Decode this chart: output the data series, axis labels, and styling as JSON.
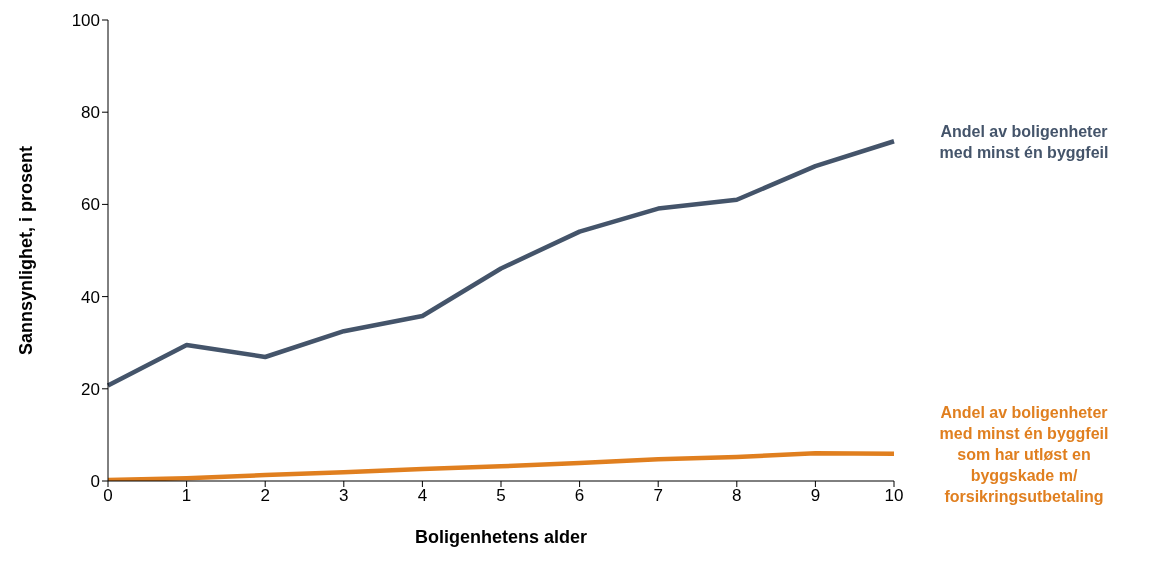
{
  "chart_data": {
    "type": "line",
    "xlabel": "Boligenhetens alder",
    "ylabel": "Sannsynlighet, i prosent",
    "categories": [
      "0",
      "1",
      "2",
      "3",
      "4",
      "5",
      "6",
      "7",
      "8",
      "9",
      "10"
    ],
    "ylim": [
      0,
      100
    ],
    "yticks": [
      0,
      20,
      40,
      60,
      80,
      100
    ],
    "grid": false,
    "legend": false,
    "marker": "none",
    "line_style": "solid",
    "series": [
      {
        "name": "Andel av boligenheter med minst én byggfeil",
        "color": "#44546a",
        "values": [
          20.7,
          29.5,
          26.9,
          32.5,
          35.8,
          46.1,
          54.1,
          59.1,
          61.0,
          68.3,
          73.7
        ]
      },
      {
        "name": "Andel av boligenheter med minst én byggfeil som har utløst en byggskade m/ forsikringsutbetaling",
        "color": "#e07f1f",
        "values": [
          0.2,
          0.6,
          1.3,
          1.9,
          2.6,
          3.2,
          3.9,
          4.7,
          5.2,
          6.0,
          5.9
        ]
      }
    ]
  }
}
